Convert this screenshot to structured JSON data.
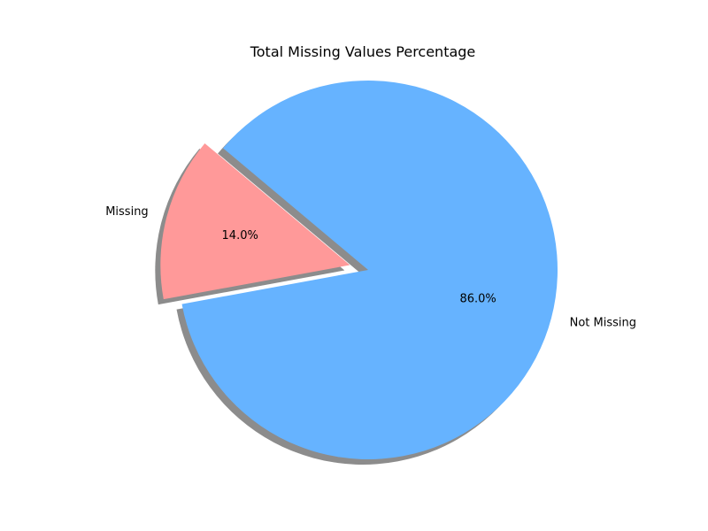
{
  "chart_data": {
    "type": "pie",
    "title": "Total Missing Values Percentage",
    "start_angle_deg": 140,
    "direction": "counterclockwise",
    "shadow": true,
    "slices": [
      {
        "label": "Missing",
        "value": 14.0,
        "pct_label": "14.0%",
        "color": "#ff9999",
        "explode": 0.1
      },
      {
        "label": "Not Missing",
        "value": 86.0,
        "pct_label": "86.0%",
        "color": "#66b3ff",
        "explode": 0.0
      }
    ]
  }
}
